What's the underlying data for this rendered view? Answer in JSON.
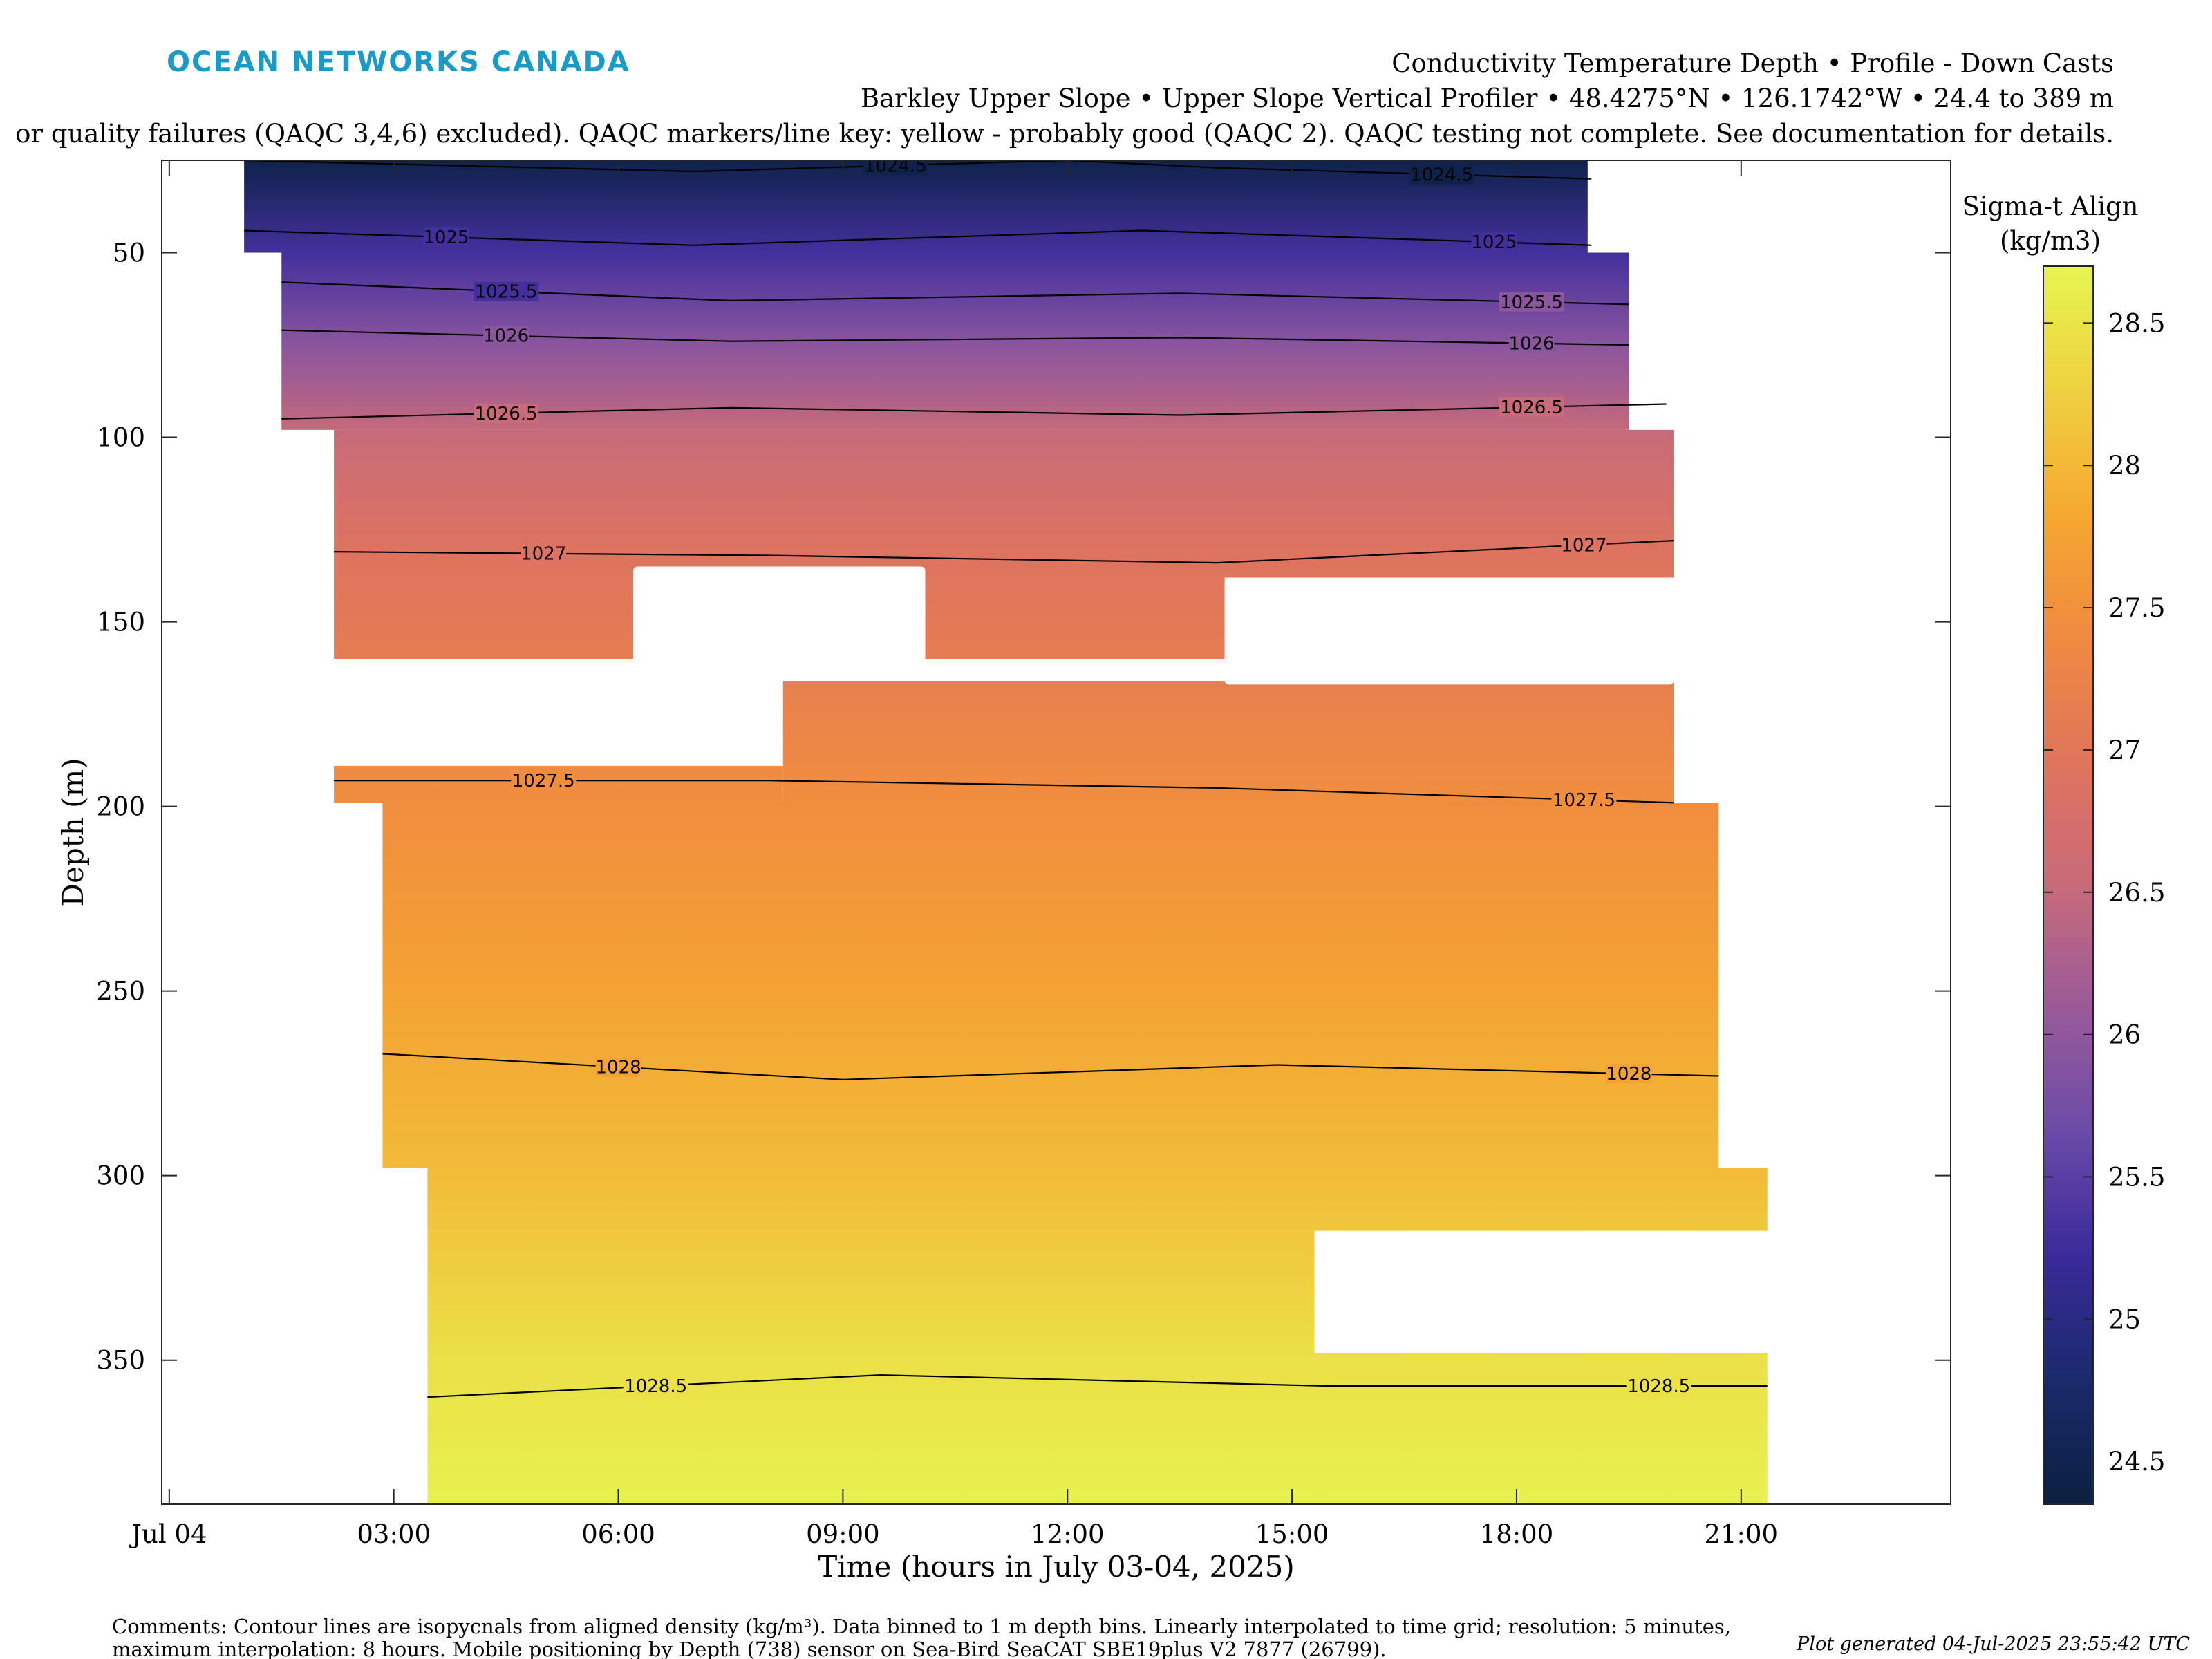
{
  "header": {
    "logo_text": "OCEAN NETWORKS CANADA",
    "title_line1": "Conductivity Temperature Depth • Profile - Down Casts",
    "title_line2": "Barkley Upper Slope • Upper Slope Vertical Profiler • 48.4275°N • 126.1742°W • 24.4 to 389 m",
    "title_line3": "or quality failures (QAQC 3,4,6) excluded). QAQC markers/line key: yellow - probably good (QAQC 2). QAQC testing not complete. See documentation for details."
  },
  "colors": {
    "logo": "#1a9bc7",
    "contour": "#000000",
    "colormap": [
      "#0b2040",
      "#1a2a6c",
      "#3a2a9a",
      "#6a4aa8",
      "#9a5a9a",
      "#c86a7a",
      "#e0745c",
      "#f08a40",
      "#f5a830",
      "#efd040",
      "#e6f550"
    ]
  },
  "chart_data": {
    "type": "heatmap",
    "xlabel": "Time (hours in July 03-04, 2025)",
    "ylabel": "Depth (m)",
    "x_tick_labels": [
      "Jul 04",
      "03:00",
      "06:00",
      "09:00",
      "12:00",
      "15:00",
      "18:00",
      "21:00"
    ],
    "x_tick_hours": [
      0,
      3,
      6,
      9,
      12,
      15,
      18,
      21
    ],
    "xlim_hours": [
      -0.1,
      23.8
    ],
    "y_ticks": [
      50,
      100,
      150,
      200,
      250,
      300,
      350
    ],
    "ylim": [
      25,
      389
    ],
    "y_reversed": true,
    "colorbar": {
      "title_line1": "Sigma-t Align",
      "title_line2": "(kg/m3)",
      "range": [
        24.35,
        28.7
      ],
      "ticks": [
        24.5,
        25,
        25.5,
        26,
        26.5,
        27,
        27.5,
        28,
        28.5
      ]
    },
    "color_vs_depth": [
      [
        25,
        24.45
      ],
      [
        50,
        25.3
      ],
      [
        75,
        25.95
      ],
      [
        100,
        26.55
      ],
      [
        130,
        26.9
      ],
      [
        150,
        27.05
      ],
      [
        200,
        27.45
      ],
      [
        250,
        27.75
      ],
      [
        300,
        28.05
      ],
      [
        350,
        28.45
      ],
      [
        389,
        28.65
      ]
    ],
    "data_coverage": [
      {
        "x0": 1.0,
        "x1": 18.95,
        "y0": 25,
        "y1": 50
      },
      {
        "x0": 1.5,
        "x1": 19.5,
        "y0": 50,
        "y1": 98
      },
      {
        "x0": 2.2,
        "x1": 20.1,
        "y0": 98,
        "y1": 138
      },
      {
        "x0": 2.2,
        "x1": 6.2,
        "y0": 138,
        "y1": 160
      },
      {
        "x0": 10.1,
        "x1": 14.1,
        "y0": 138,
        "y1": 160
      },
      {
        "x0": 2.2,
        "x1": 8.2,
        "y0": 189,
        "y1": 199
      },
      {
        "x0": 8.2,
        "x1": 20.1,
        "y0": 166,
        "y1": 199
      },
      {
        "x0": 2.85,
        "x1": 20.7,
        "y0": 199,
        "y1": 298
      },
      {
        "x0": 3.45,
        "x1": 21.35,
        "y0": 298,
        "y1": 315
      },
      {
        "x0": 3.45,
        "x1": 15.3,
        "y0": 315,
        "y1": 348
      },
      {
        "x0": 3.45,
        "x1": 21.35,
        "y0": 348,
        "y1": 389
      }
    ],
    "data_gaps": [
      {
        "x0": 6.2,
        "x1": 10.1,
        "y0": 135,
        "y1": 160
      },
      {
        "x0": 14.1,
        "x1": 20.1,
        "y0": 139,
        "y1": 167
      },
      {
        "x0": 15.3,
        "x1": 21.35,
        "y0": 315,
        "y1": 348
      }
    ],
    "contours": [
      {
        "label": "1024.5",
        "points": [
          [
            1.0,
            25
          ],
          [
            7.0,
            28
          ],
          [
            12.0,
            25
          ],
          [
            14.0,
            27
          ],
          [
            19.0,
            30
          ]
        ],
        "label_x": [
          9.7,
          17.0
        ]
      },
      {
        "label": "1025",
        "points": [
          [
            1.0,
            44
          ],
          [
            7.0,
            48
          ],
          [
            13.0,
            44
          ],
          [
            19.0,
            48
          ]
        ],
        "label_x": [
          3.7,
          17.7
        ]
      },
      {
        "label": "1025.5",
        "points": [
          [
            1.5,
            58
          ],
          [
            7.5,
            63
          ],
          [
            13.5,
            61
          ],
          [
            19.5,
            64
          ]
        ],
        "label_x": [
          4.5,
          18.2
        ]
      },
      {
        "label": "1026",
        "points": [
          [
            1.5,
            71
          ],
          [
            7.5,
            74
          ],
          [
            13.5,
            73
          ],
          [
            19.5,
            75
          ]
        ],
        "label_x": [
          4.5,
          18.2
        ]
      },
      {
        "label": "1026.5",
        "points": [
          [
            1.5,
            95
          ],
          [
            7.5,
            92
          ],
          [
            13.5,
            94
          ],
          [
            20.0,
            91
          ]
        ],
        "label_x": [
          4.5,
          18.2
        ]
      },
      {
        "label": "1027",
        "points": [
          [
            2.2,
            131
          ],
          [
            8.0,
            132
          ],
          [
            14.0,
            134
          ],
          [
            20.1,
            128
          ]
        ],
        "label_x": [
          5.0,
          18.9
        ]
      },
      {
        "label": "1027.5",
        "points": [
          [
            2.2,
            193
          ],
          [
            8.0,
            193
          ],
          [
            14.0,
            195
          ],
          [
            20.1,
            199
          ]
        ],
        "label_x": [
          5.0,
          18.9
        ]
      },
      {
        "label": "1028",
        "points": [
          [
            2.85,
            267
          ],
          [
            9.0,
            274
          ],
          [
            14.8,
            270
          ],
          [
            20.7,
            273
          ]
        ],
        "label_x": [
          6.0,
          19.5
        ]
      },
      {
        "label": "1028.5",
        "points": [
          [
            3.45,
            360
          ],
          [
            9.5,
            354
          ],
          [
            15.5,
            357
          ],
          [
            21.35,
            357
          ]
        ],
        "label_x": [
          6.5,
          19.9
        ]
      }
    ]
  },
  "footer": {
    "comments_line1": "Comments: Contour lines are isopycnals from aligned density (kg/m³). Data binned to 1 m depth bins. Linearly interpolated to time grid; resolution: 5 minutes,",
    "comments_line2": "maximum interpolation: 8 hours. Mobile positioning by Depth (738) sensor on Sea-Bird SeaCAT SBE19plus V2 7877 (26799).",
    "generated": "Plot generated 04-Jul-2025 23:55:42 UTC"
  }
}
